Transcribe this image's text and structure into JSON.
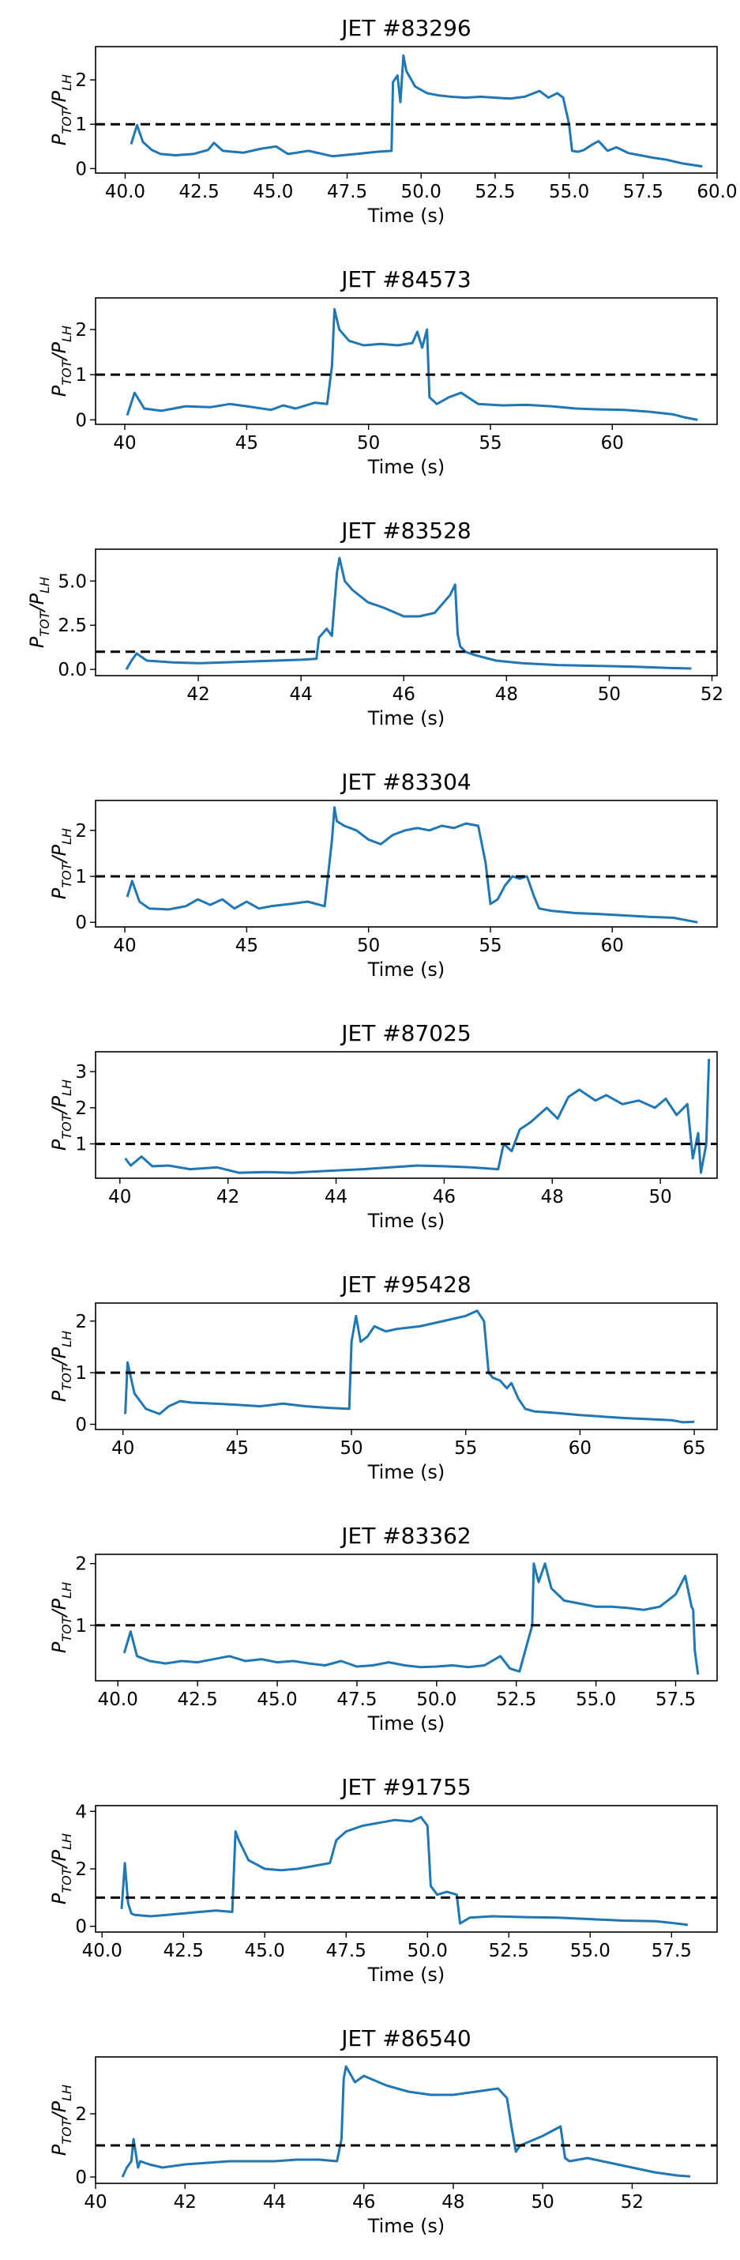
{
  "figure": {
    "series_color": "#1f77b4",
    "reference_color": "#000000",
    "ylabel_main": "P",
    "ylabel_sub_num": "TOT",
    "ylabel_sep": "/P",
    "ylabel_sub_den": "LH",
    "reference_level": 1
  },
  "chart_data": [
    {
      "type": "line",
      "title": "JET #83296",
      "xlabel": "Time (s)",
      "ylabel": "P_TOT/P_LH",
      "xlim": [
        39.0,
        60.0
      ],
      "ylim": [
        -0.1,
        2.75
      ],
      "xticks": [
        40.0,
        42.5,
        45.0,
        47.5,
        50.0,
        52.5,
        55.0,
        57.5,
        60.0
      ],
      "xtick_labels": [
        "40.0",
        "42.5",
        "45.0",
        "47.5",
        "50.0",
        "52.5",
        "55.0",
        "57.5",
        "60.0"
      ],
      "yticks": [
        0,
        1,
        2
      ],
      "ytick_labels": [
        "0",
        "1",
        "2"
      ],
      "reference_line": 1,
      "x": [
        40.2,
        40.4,
        40.6,
        40.9,
        41.2,
        41.7,
        42.3,
        42.8,
        43.0,
        43.3,
        44.0,
        44.6,
        45.1,
        45.5,
        46.2,
        47.0,
        47.8,
        48.5,
        49.0,
        49.05,
        49.2,
        49.3,
        49.4,
        49.5,
        49.8,
        50.2,
        50.6,
        51.0,
        51.5,
        52.0,
        52.5,
        53.0,
        53.5,
        54.0,
        54.3,
        54.6,
        54.8,
        55.0,
        55.1,
        55.3,
        55.5,
        55.8,
        56.0,
        56.3,
        56.6,
        57.0,
        57.4,
        57.8,
        58.3,
        58.8,
        59.5
      ],
      "y": [
        0.55,
        0.98,
        0.6,
        0.42,
        0.33,
        0.3,
        0.33,
        0.42,
        0.58,
        0.4,
        0.36,
        0.45,
        0.5,
        0.33,
        0.4,
        0.28,
        0.33,
        0.38,
        0.4,
        1.95,
        2.1,
        1.5,
        2.55,
        2.2,
        1.85,
        1.7,
        1.65,
        1.62,
        1.6,
        1.62,
        1.6,
        1.58,
        1.62,
        1.75,
        1.6,
        1.7,
        1.6,
        1.0,
        0.4,
        0.38,
        0.42,
        0.55,
        0.62,
        0.4,
        0.48,
        0.35,
        0.3,
        0.25,
        0.2,
        0.12,
        0.05
      ]
    },
    {
      "type": "line",
      "title": "JET #84573",
      "xlabel": "Time (s)",
      "ylabel": "P_TOT/P_LH",
      "xlim": [
        38.8,
        64.3
      ],
      "ylim": [
        -0.1,
        2.7
      ],
      "xticks": [
        40,
        45,
        50,
        55,
        60
      ],
      "xtick_labels": [
        "40",
        "45",
        "50",
        "55",
        "60"
      ],
      "yticks": [
        0,
        1,
        2
      ],
      "ytick_labels": [
        "0",
        "1",
        "2"
      ],
      "reference_line": 1,
      "x": [
        40.1,
        40.4,
        40.8,
        41.5,
        42.5,
        43.5,
        44.3,
        45.0,
        46.0,
        46.5,
        47.0,
        47.8,
        48.3,
        48.5,
        48.6,
        48.8,
        49.2,
        49.8,
        50.5,
        51.2,
        51.8,
        52.0,
        52.2,
        52.4,
        52.5,
        52.8,
        53.3,
        53.8,
        54.5,
        55.5,
        56.5,
        57.5,
        58.5,
        59.5,
        60.5,
        61.5,
        62.5,
        63.0,
        63.5
      ],
      "y": [
        0.1,
        0.6,
        0.25,
        0.2,
        0.3,
        0.28,
        0.35,
        0.3,
        0.22,
        0.32,
        0.25,
        0.38,
        0.35,
        1.2,
        2.45,
        2.0,
        1.75,
        1.65,
        1.68,
        1.65,
        1.7,
        1.95,
        1.6,
        2.0,
        0.5,
        0.35,
        0.5,
        0.6,
        0.35,
        0.32,
        0.33,
        0.3,
        0.25,
        0.23,
        0.22,
        0.18,
        0.12,
        0.05,
        0.0
      ]
    },
    {
      "type": "line",
      "title": "JET #83528",
      "xlabel": "Time (s)",
      "ylabel": "P_TOT/P_LH",
      "xlim": [
        40.0,
        52.1
      ],
      "ylim": [
        -0.35,
        6.8
      ],
      "xticks": [
        42,
        44,
        46,
        48,
        50,
        52
      ],
      "xtick_labels": [
        "42",
        "44",
        "46",
        "48",
        "50",
        "52"
      ],
      "yticks": [
        0.0,
        2.5,
        5.0
      ],
      "ytick_labels": [
        "0.0",
        "2.5",
        "5.0"
      ],
      "reference_line": 1,
      "x": [
        40.6,
        40.7,
        40.8,
        41.0,
        41.5,
        42.0,
        42.5,
        43.0,
        43.5,
        44.0,
        44.3,
        44.35,
        44.5,
        44.6,
        44.7,
        44.75,
        44.85,
        45.0,
        45.3,
        45.6,
        46.0,
        46.3,
        46.6,
        46.9,
        47.0,
        47.05,
        47.1,
        47.2,
        47.4,
        47.8,
        48.3,
        49.0,
        49.8,
        50.5,
        51.2,
        51.6
      ],
      "y": [
        0.0,
        0.5,
        0.9,
        0.5,
        0.4,
        0.35,
        0.4,
        0.45,
        0.5,
        0.55,
        0.6,
        1.8,
        2.3,
        1.9,
        5.5,
        6.3,
        5.0,
        4.5,
        3.8,
        3.5,
        3.0,
        3.0,
        3.2,
        4.2,
        4.8,
        2.0,
        1.3,
        1.0,
        0.8,
        0.5,
        0.35,
        0.25,
        0.2,
        0.15,
        0.08,
        0.05
      ]
    },
    {
      "type": "line",
      "title": "JET #83304",
      "xlabel": "Time (s)",
      "ylabel": "P_TOT/P_LH",
      "xlim": [
        38.8,
        64.3
      ],
      "ylim": [
        -0.1,
        2.65
      ],
      "xticks": [
        40,
        45,
        50,
        55,
        60
      ],
      "xtick_labels": [
        "40",
        "45",
        "50",
        "55",
        "60"
      ],
      "yticks": [
        0,
        1,
        2
      ],
      "ytick_labels": [
        "0",
        "1",
        "2"
      ],
      "reference_line": 1,
      "x": [
        40.1,
        40.3,
        40.6,
        41.0,
        41.8,
        42.5,
        43.0,
        43.5,
        44.0,
        44.5,
        45.0,
        45.5,
        46.0,
        46.8,
        47.5,
        48.2,
        48.5,
        48.6,
        48.7,
        49.0,
        49.5,
        50.0,
        50.5,
        51.0,
        51.5,
        52.0,
        52.5,
        53.0,
        53.5,
        54.0,
        54.5,
        54.8,
        55.0,
        55.3,
        55.6,
        55.9,
        56.2,
        56.5,
        56.8,
        57.0,
        57.5,
        58.5,
        59.5,
        60.5,
        61.5,
        62.5,
        63.0,
        63.5
      ],
      "y": [
        0.55,
        0.9,
        0.45,
        0.3,
        0.28,
        0.35,
        0.5,
        0.38,
        0.5,
        0.3,
        0.45,
        0.3,
        0.35,
        0.4,
        0.45,
        0.35,
        1.8,
        2.5,
        2.2,
        2.1,
        2.0,
        1.8,
        1.7,
        1.9,
        2.0,
        2.05,
        2.0,
        2.1,
        2.05,
        2.15,
        2.1,
        1.3,
        0.4,
        0.5,
        0.8,
        1.0,
        0.95,
        1.0,
        0.55,
        0.3,
        0.25,
        0.2,
        0.18,
        0.15,
        0.12,
        0.1,
        0.05,
        0.0
      ]
    },
    {
      "type": "line",
      "title": "JET #87025",
      "xlabel": "Time (s)",
      "ylabel": "P_TOT/P_LH",
      "xlim": [
        39.55,
        51.05
      ],
      "ylim": [
        0.05,
        3.55
      ],
      "xticks": [
        40,
        42,
        44,
        46,
        48,
        50
      ],
      "xtick_labels": [
        "40",
        "42",
        "44",
        "46",
        "48",
        "50"
      ],
      "yticks": [
        1,
        2,
        3
      ],
      "ytick_labels": [
        "1",
        "2",
        "3"
      ],
      "reference_line": 1,
      "x": [
        40.1,
        40.2,
        40.4,
        40.6,
        40.9,
        41.3,
        41.8,
        42.2,
        42.7,
        43.2,
        43.8,
        44.5,
        45.0,
        45.5,
        46.0,
        46.5,
        47.0,
        47.1,
        47.25,
        47.4,
        47.6,
        47.9,
        48.1,
        48.3,
        48.5,
        48.8,
        49.0,
        49.3,
        49.6,
        49.9,
        50.1,
        50.3,
        50.5,
        50.6,
        50.7,
        50.75,
        50.85,
        50.9
      ],
      "y": [
        0.6,
        0.4,
        0.65,
        0.38,
        0.4,
        0.3,
        0.35,
        0.2,
        0.22,
        0.2,
        0.25,
        0.3,
        0.35,
        0.4,
        0.38,
        0.35,
        0.3,
        1.0,
        0.8,
        1.4,
        1.6,
        2.0,
        1.7,
        2.3,
        2.5,
        2.2,
        2.35,
        2.1,
        2.2,
        2.0,
        2.25,
        1.8,
        2.1,
        0.6,
        1.3,
        0.2,
        1.0,
        3.35
      ]
    },
    {
      "type": "line",
      "title": "JET #95428",
      "xlabel": "Time (s)",
      "ylabel": "P_TOT/P_LH",
      "xlim": [
        38.8,
        66.0
      ],
      "ylim": [
        -0.1,
        2.35
      ],
      "xticks": [
        40,
        45,
        50,
        55,
        60,
        65
      ],
      "xtick_labels": [
        "40",
        "45",
        "50",
        "55",
        "60",
        "65"
      ],
      "yticks": [
        0,
        1,
        2
      ],
      "ytick_labels": [
        "0",
        "1",
        "2"
      ],
      "reference_line": 1,
      "x": [
        40.1,
        40.2,
        40.5,
        41.0,
        41.6,
        42.0,
        42.5,
        43.0,
        44.0,
        45.0,
        46.0,
        47.0,
        48.0,
        49.0,
        49.9,
        50.0,
        50.2,
        50.4,
        50.7,
        51.0,
        51.5,
        52.0,
        53.0,
        54.0,
        55.0,
        55.5,
        55.8,
        56.0,
        56.2,
        56.5,
        56.8,
        57.0,
        57.3,
        57.6,
        58.0,
        59.0,
        60.0,
        61.0,
        62.0,
        63.0,
        64.0,
        64.5,
        65.0
      ],
      "y": [
        0.2,
        1.2,
        0.6,
        0.3,
        0.2,
        0.35,
        0.45,
        0.42,
        0.4,
        0.38,
        0.35,
        0.4,
        0.35,
        0.32,
        0.3,
        1.6,
        2.1,
        1.6,
        1.7,
        1.9,
        1.8,
        1.85,
        1.9,
        2.0,
        2.1,
        2.2,
        2.0,
        1.0,
        0.9,
        0.85,
        0.7,
        0.8,
        0.5,
        0.3,
        0.25,
        0.22,
        0.18,
        0.15,
        0.12,
        0.1,
        0.08,
        0.04,
        0.05
      ]
    },
    {
      "type": "line",
      "title": "JET #83362",
      "xlabel": "Time (s)",
      "ylabel": "P_TOT/P_LH",
      "xlim": [
        39.3,
        58.8
      ],
      "ylim": [
        0.1,
        2.15
      ],
      "xticks": [
        40.0,
        42.5,
        45.0,
        47.5,
        50.0,
        52.5,
        55.0,
        57.5
      ],
      "xtick_labels": [
        "40.0",
        "42.5",
        "45.0",
        "47.5",
        "50.0",
        "52.5",
        "55.0",
        "57.5"
      ],
      "yticks": [
        1,
        2
      ],
      "ytick_labels": [
        "1",
        "2"
      ],
      "reference_line": 1,
      "x": [
        40.2,
        40.4,
        40.6,
        41.0,
        41.5,
        42.0,
        42.5,
        43.0,
        43.5,
        44.0,
        44.5,
        45.0,
        45.5,
        46.0,
        46.5,
        47.0,
        47.5,
        48.0,
        48.5,
        49.0,
        49.5,
        50.0,
        50.5,
        51.0,
        51.5,
        52.0,
        52.3,
        52.6,
        53.0,
        53.05,
        53.2,
        53.4,
        53.6,
        54.0,
        54.5,
        55.0,
        55.5,
        56.0,
        56.5,
        57.0,
        57.5,
        57.8,
        58.0,
        58.05,
        58.1,
        58.2
      ],
      "y": [
        0.55,
        0.9,
        0.5,
        0.42,
        0.38,
        0.42,
        0.4,
        0.45,
        0.5,
        0.42,
        0.45,
        0.4,
        0.42,
        0.38,
        0.35,
        0.42,
        0.33,
        0.35,
        0.4,
        0.35,
        0.32,
        0.33,
        0.35,
        0.32,
        0.35,
        0.5,
        0.3,
        0.25,
        1.0,
        2.0,
        1.7,
        2.0,
        1.6,
        1.4,
        1.35,
        1.3,
        1.3,
        1.28,
        1.25,
        1.3,
        1.5,
        1.8,
        1.3,
        1.25,
        0.6,
        0.2
      ]
    },
    {
      "type": "line",
      "title": "JET #91755",
      "xlabel": "Time (s)",
      "ylabel": "P_TOT/P_LH",
      "xlim": [
        39.8,
        58.9
      ],
      "ylim": [
        -0.2,
        4.2
      ],
      "xticks": [
        40.0,
        42.5,
        45.0,
        47.5,
        50.0,
        52.5,
        55.0,
        57.5
      ],
      "xtick_labels": [
        "40.0",
        "42.5",
        "45.0",
        "47.5",
        "50.0",
        "52.5",
        "55.0",
        "57.5"
      ],
      "yticks": [
        0,
        2,
        4
      ],
      "ytick_labels": [
        "0",
        "2",
        "4"
      ],
      "reference_line": 1,
      "x": [
        40.6,
        40.7,
        40.8,
        40.9,
        41.0,
        41.5,
        42.0,
        43.0,
        43.5,
        44.0,
        44.1,
        44.2,
        44.5,
        45.0,
        45.5,
        46.0,
        46.5,
        47.0,
        47.2,
        47.5,
        48.0,
        48.5,
        49.0,
        49.5,
        49.8,
        50.0,
        50.1,
        50.3,
        50.6,
        50.9,
        51.0,
        51.3,
        52.0,
        53.0,
        54.0,
        55.0,
        56.0,
        57.0,
        57.5,
        58.0
      ],
      "y": [
        0.6,
        2.2,
        0.8,
        0.45,
        0.4,
        0.35,
        0.4,
        0.5,
        0.55,
        0.5,
        3.3,
        3.0,
        2.3,
        2.0,
        1.95,
        2.0,
        2.1,
        2.2,
        3.0,
        3.3,
        3.5,
        3.6,
        3.7,
        3.65,
        3.8,
        3.5,
        1.4,
        1.1,
        1.2,
        1.1,
        0.1,
        0.3,
        0.35,
        0.32,
        0.3,
        0.25,
        0.2,
        0.18,
        0.12,
        0.05
      ]
    },
    {
      "type": "line",
      "title": "JET #86540",
      "xlabel": "Time (s)",
      "ylabel": "P_TOT/P_LH",
      "xlim": [
        40.0,
        53.9
      ],
      "ylim": [
        -0.2,
        3.8
      ],
      "xticks": [
        40,
        42,
        44,
        46,
        48,
        50,
        52
      ],
      "xtick_labels": [
        "40",
        "42",
        "44",
        "46",
        "48",
        "50",
        "52"
      ],
      "yticks": [
        0,
        2
      ],
      "ytick_labels": [
        "0",
        "2"
      ],
      "reference_line": 1,
      "x": [
        40.6,
        40.7,
        40.8,
        40.85,
        40.95,
        41.0,
        41.2,
        41.5,
        42.0,
        42.5,
        43.0,
        43.5,
        44.0,
        44.5,
        45.0,
        45.4,
        45.5,
        45.55,
        45.6,
        45.8,
        46.0,
        46.5,
        47.0,
        47.5,
        48.0,
        48.5,
        49.0,
        49.2,
        49.3,
        49.4,
        49.5,
        50.0,
        50.4,
        50.5,
        50.6,
        51.0,
        51.5,
        52.0,
        52.5,
        53.0,
        53.3
      ],
      "y": [
        0.0,
        0.3,
        0.5,
        1.2,
        0.3,
        0.5,
        0.4,
        0.3,
        0.4,
        0.45,
        0.5,
        0.5,
        0.5,
        0.55,
        0.55,
        0.5,
        1.2,
        3.1,
        3.5,
        3.0,
        3.2,
        2.9,
        2.7,
        2.6,
        2.6,
        2.7,
        2.8,
        2.5,
        1.6,
        0.8,
        1.0,
        1.3,
        1.6,
        0.6,
        0.5,
        0.6,
        0.45,
        0.3,
        0.15,
        0.05,
        0.02
      ]
    }
  ]
}
